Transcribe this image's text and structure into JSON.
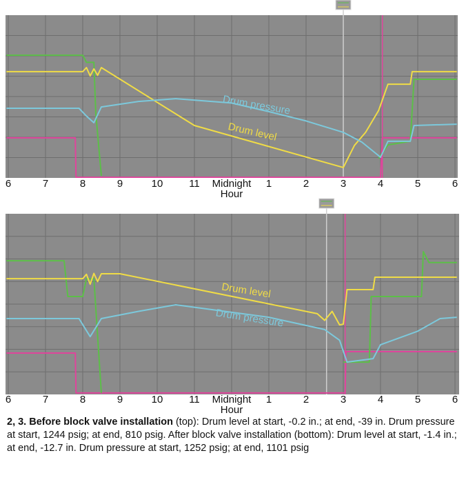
{
  "chart_data": [
    {
      "type": "line",
      "xlabel": "Hour",
      "xlim": [
        0,
        12
      ],
      "ylim": [
        0,
        100
      ],
      "xticks": [
        {
          "value": 0,
          "label": "6"
        },
        {
          "value": 1,
          "label": "7"
        },
        {
          "value": 2,
          "label": "8"
        },
        {
          "value": 3,
          "label": "9"
        },
        {
          "value": 4,
          "label": "10"
        },
        {
          "value": 5,
          "label": "11"
        },
        {
          "value": 6,
          "label": "Midnight"
        },
        {
          "value": 7,
          "label": "1"
        },
        {
          "value": 8,
          "label": "2"
        },
        {
          "value": 9,
          "label": "3"
        },
        {
          "value": 10,
          "label": "4"
        },
        {
          "value": 11,
          "label": "5"
        },
        {
          "value": 12,
          "label": "6"
        }
      ],
      "series": [
        {
          "name": "Drum pressure",
          "color": "#7cc9dc",
          "x": [
            -0.05,
            1.9,
            2.1,
            2.3,
            2.5,
            3.5,
            4.5,
            6,
            7,
            8,
            9,
            9.5,
            10,
            10.2,
            10.8,
            10.9,
            12.05
          ],
          "values": [
            42.8,
            42.8,
            38,
            33.9,
            43.6,
            47,
            48.7,
            46,
            40.7,
            35,
            28,
            22,
            12.7,
            22.5,
            22.5,
            32.2,
            33
          ]
        },
        {
          "name": "Drum level",
          "color": "#f0dc46",
          "x": [
            -0.05,
            2.0,
            2.1,
            2.2,
            2.3,
            2.4,
            2.5,
            5,
            9,
            9.3,
            9.6,
            9.95,
            10.2,
            10.8,
            10.85,
            12.05
          ],
          "values": [
            65.3,
            65.3,
            67.8,
            62.7,
            67,
            63,
            67.8,
            32.2,
            6.4,
            20,
            28,
            41.5,
            57.6,
            57.6,
            65.3,
            65.3
          ]
        },
        {
          "color": "#5cbf48",
          "x": [
            -0.05,
            2.0,
            2.1,
            2.3,
            2.35,
            2.5,
            2.55,
            9.95,
            10.2,
            10.8,
            10.9,
            12.05
          ],
          "values": [
            75.4,
            75.4,
            71,
            71,
            40,
            1.3,
            null,
            11.9,
            20.3,
            22.5,
            60.6,
            60.6
          ]
        },
        {
          "color": "#e0449c",
          "x": [
            -0.05,
            1.8,
            1.82,
            10.0,
            10.05,
            12.05
          ],
          "values": [
            24.6,
            24.6,
            0.4,
            0.4,
            24.6,
            24.6
          ]
        }
      ],
      "annotations": [
        "Drum pressure",
        "Drum level"
      ]
    },
    {
      "type": "line",
      "xlabel": "Hour",
      "xlim": [
        0,
        12
      ],
      "ylim": [
        0,
        100
      ],
      "xticks": [
        {
          "value": 0,
          "label": "6"
        },
        {
          "value": 1,
          "label": "7"
        },
        {
          "value": 2,
          "label": "8"
        },
        {
          "value": 3,
          "label": "9"
        },
        {
          "value": 4,
          "label": "10"
        },
        {
          "value": 5,
          "label": "11"
        },
        {
          "value": 6,
          "label": "Midnight"
        },
        {
          "value": 7,
          "label": "1"
        },
        {
          "value": 8,
          "label": "2"
        },
        {
          "value": 9,
          "label": "3"
        },
        {
          "value": 10,
          "label": "4"
        },
        {
          "value": 11,
          "label": "5"
        },
        {
          "value": 12,
          "label": "6"
        }
      ],
      "series": [
        {
          "name": "Drum level",
          "color": "#f0dc46",
          "x": [
            -0.05,
            2.0,
            2.1,
            2.2,
            2.3,
            2.4,
            2.5,
            3,
            8.3,
            8.5,
            8.7,
            8.9,
            9.0,
            9.1,
            9.8,
            9.85,
            12.05
          ],
          "values": [
            64.1,
            64.1,
            66.5,
            61,
            67,
            62.5,
            66.8,
            66.8,
            44.7,
            41,
            46,
            38.5,
            38.9,
            58,
            58,
            64.9,
            64.9
          ]
        },
        {
          "name": "Drum pressure",
          "color": "#7cc9dc",
          "x": [
            -0.05,
            1.9,
            2.2,
            2.5,
            3.5,
            4.5,
            7,
            8.5,
            8.9,
            9.1,
            9.8,
            10.0,
            11,
            11.6,
            12.05
          ],
          "values": [
            42,
            42,
            32,
            42,
            46,
            49.6,
            42.7,
            35.9,
            30,
            17.9,
            19.8,
            27.5,
            35,
            42,
            42.7
          ]
        },
        {
          "color": "#5cbf48",
          "x": [
            -0.05,
            1.5,
            1.6,
            2.0,
            2.1,
            2.3,
            2.5,
            2.55,
            9.0,
            9.7,
            9.75,
            11.1,
            11.15,
            11.3,
            12.05
          ],
          "values": [
            74,
            74,
            54.2,
            54.2,
            64,
            64,
            0.8,
            null,
            17.9,
            17.9,
            54.2,
            54.2,
            79,
            73,
            73
          ]
        },
        {
          "color": "#e0449c",
          "x": [
            -0.05,
            1.8,
            1.82,
            9.05,
            9.07,
            12.05
          ],
          "values": [
            22.9,
            22.9,
            0.8,
            0.8,
            23.7,
            23.7
          ]
        }
      ],
      "annotations": [
        "Drum level",
        "Drum pressure"
      ]
    }
  ],
  "caption": {
    "bold": "2, 3. Before block valve installation",
    "text": " (top): Drum level at start, -0.2 in.; at end, -39 in. Drum pressure at start, 1244 psig; at end, 810 psig. After block valve installation (bottom): Drum level at start, -1.4 in.; at end, -12.7 in. Drum pressure at start, 1252 psig; at end, 1101 psig"
  }
}
